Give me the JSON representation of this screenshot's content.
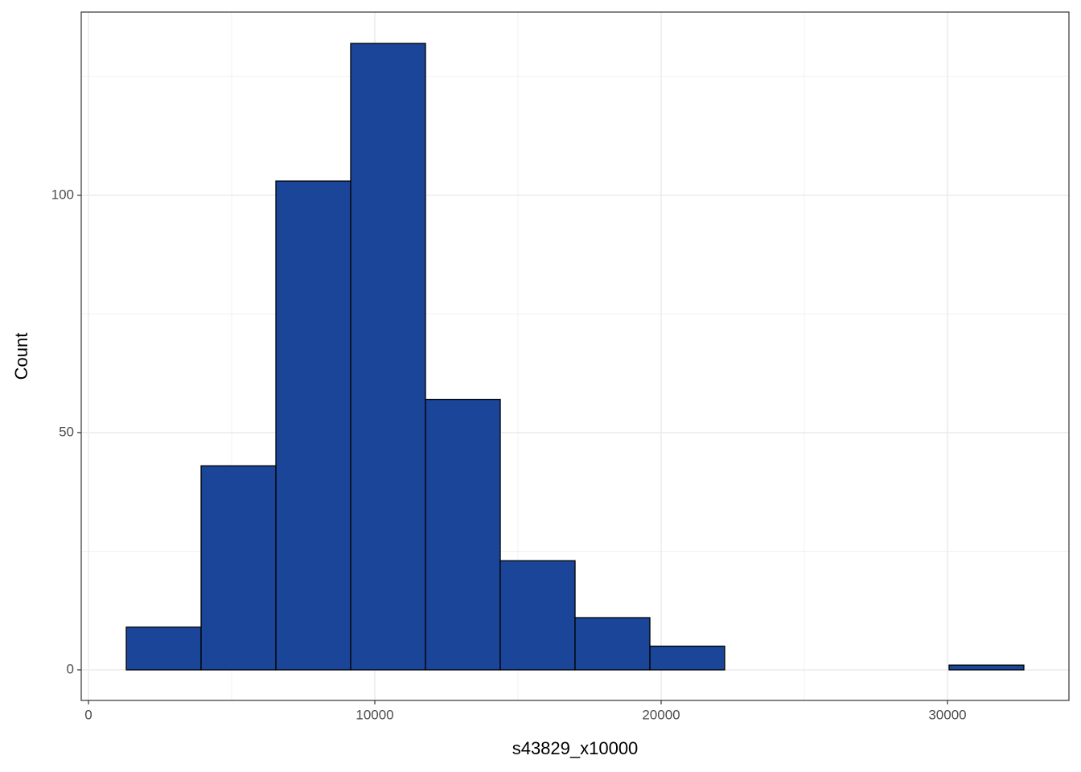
{
  "chart_data": {
    "type": "histogram",
    "x_label": "s43829_x10000",
    "y_label": "Count",
    "bins": [
      1320,
      3933,
      6545,
      9157,
      11770,
      14382,
      16994,
      19607,
      22219,
      24831,
      27444,
      30056,
      32668
    ],
    "values": [
      9,
      43,
      103,
      132,
      57,
      23,
      11,
      5,
      0,
      0,
      0,
      1
    ],
    "color": "#1a4598",
    "edge_color": "#000000",
    "xlim": [
      -253,
      34242
    ],
    "ylim": [
      -6.44,
      138.6
    ],
    "xticks": [
      0,
      10000,
      20000,
      30000
    ],
    "yticks": [
      0,
      50,
      100
    ],
    "xminor": [
      5000,
      15000,
      25000
    ],
    "yminor": [
      25,
      75,
      125
    ],
    "grid": true
  }
}
